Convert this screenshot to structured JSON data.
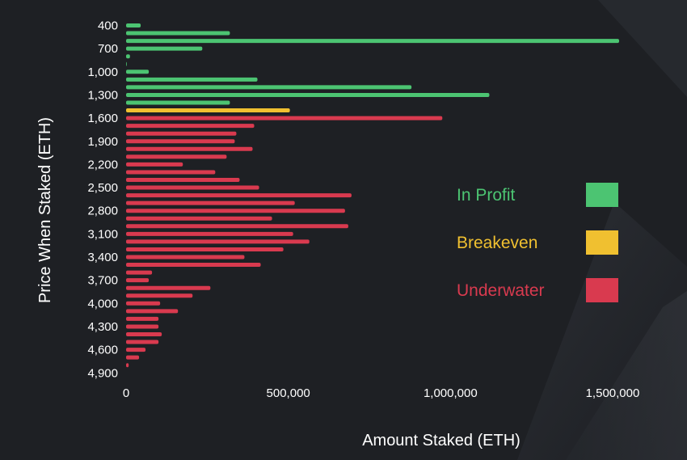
{
  "chart_data": {
    "type": "bar",
    "orientation": "horizontal",
    "xlabel": "Amount Staked (ETH)",
    "ylabel": "Price When Staked (ETH)",
    "xlim": [
      0,
      1500000
    ],
    "x_ticks": [
      "0",
      "500,000",
      "1,000,000",
      "1,500,000"
    ],
    "x_tick_values": [
      0,
      500000,
      1000000,
      1500000
    ],
    "y_ticks": [
      "400",
      "700",
      "1,000",
      "1,300",
      "1,600",
      "1,900",
      "2,200",
      "2,500",
      "2,800",
      "3,100",
      "3,400",
      "3,700",
      "4,000",
      "4,300",
      "4,600",
      "4,900"
    ],
    "y_tick_values": [
      400,
      700,
      1000,
      1300,
      1600,
      1900,
      2200,
      2500,
      2800,
      3100,
      3400,
      3700,
      4000,
      4300,
      4600,
      4900
    ],
    "grid": false,
    "legend_position": "right",
    "legend": [
      {
        "key": "profit",
        "label": "In Profit",
        "color": "#4cc472"
      },
      {
        "key": "breakeven",
        "label": "Breakeven",
        "color": "#f0c030"
      },
      {
        "key": "underwater",
        "label": "Underwater",
        "color": "#d93a4f"
      }
    ],
    "categories": [
      400,
      500,
      600,
      700,
      800,
      900,
      1000,
      1100,
      1200,
      1300,
      1400,
      1500,
      1600,
      1700,
      1800,
      1900,
      2000,
      2100,
      2200,
      2300,
      2400,
      2500,
      2600,
      2700,
      2800,
      2900,
      3000,
      3100,
      3200,
      3300,
      3400,
      3500,
      3600,
      3700,
      3800,
      3900,
      4000,
      4100,
      4200,
      4300,
      4400,
      4500,
      4600,
      4700,
      4800,
      4900
    ],
    "values": [
      45000,
      320000,
      1520000,
      235000,
      12000,
      2000,
      70000,
      405000,
      880000,
      1120000,
      320000,
      505000,
      975000,
      395000,
      340000,
      335000,
      390000,
      310000,
      175000,
      275000,
      350000,
      410000,
      695000,
      520000,
      675000,
      450000,
      685000,
      515000,
      565000,
      485000,
      365000,
      415000,
      80000,
      70000,
      260000,
      205000,
      105000,
      160000,
      100000,
      100000,
      110000,
      100000,
      60000,
      40000,
      8000,
      0
    ],
    "status": [
      "profit",
      "profit",
      "profit",
      "profit",
      "profit",
      "profit",
      "profit",
      "profit",
      "profit",
      "profit",
      "profit",
      "breakeven",
      "underwater",
      "underwater",
      "underwater",
      "underwater",
      "underwater",
      "underwater",
      "underwater",
      "underwater",
      "underwater",
      "underwater",
      "underwater",
      "underwater",
      "underwater",
      "underwater",
      "underwater",
      "underwater",
      "underwater",
      "underwater",
      "underwater",
      "underwater",
      "underwater",
      "underwater",
      "underwater",
      "underwater",
      "underwater",
      "underwater",
      "underwater",
      "underwater",
      "underwater",
      "underwater",
      "underwater",
      "underwater",
      "underwater",
      "underwater"
    ]
  }
}
